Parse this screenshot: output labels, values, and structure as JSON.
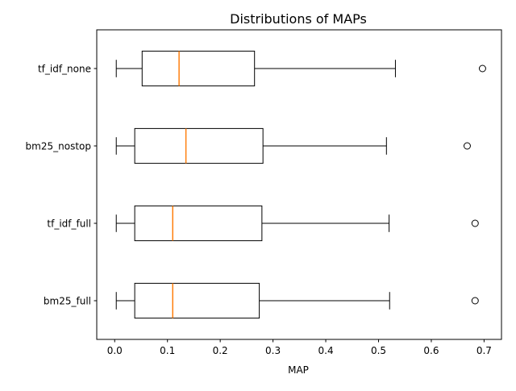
{
  "chart_data": {
    "type": "boxplot",
    "orientation": "horizontal",
    "title": "Distributions of MAPs",
    "xlabel": "MAP",
    "ylabel": "",
    "xlim": [
      -0.034,
      0.733
    ],
    "xticks": [
      0.0,
      0.1,
      0.2,
      0.3,
      0.4,
      0.5,
      0.6,
      0.7
    ],
    "xtick_labels": [
      "0.0",
      "0.1",
      "0.2",
      "0.3",
      "0.4",
      "0.5",
      "0.6",
      "0.7"
    ],
    "grid": false,
    "colors": {
      "box": "#000000",
      "median": "#ff7f0e",
      "outlier_edge": "#000000"
    },
    "boxes": [
      {
        "label": "tf_idf_none",
        "whisker_low": 0.003,
        "q1": 0.052,
        "median": 0.122,
        "q3": 0.265,
        "whisker_high": 0.532,
        "outliers": [
          0.697
        ]
      },
      {
        "label": "bm25_nostop",
        "whisker_low": 0.003,
        "q1": 0.038,
        "median": 0.135,
        "q3": 0.281,
        "whisker_high": 0.515,
        "outliers": [
          0.668
        ]
      },
      {
        "label": "tf_idf_full",
        "whisker_low": 0.003,
        "q1": 0.038,
        "median": 0.11,
        "q3": 0.279,
        "whisker_high": 0.52,
        "outliers": [
          0.683
        ]
      },
      {
        "label": "bm25_full",
        "whisker_low": 0.003,
        "q1": 0.038,
        "median": 0.11,
        "q3": 0.274,
        "whisker_high": 0.521,
        "outliers": [
          0.683
        ]
      }
    ]
  }
}
